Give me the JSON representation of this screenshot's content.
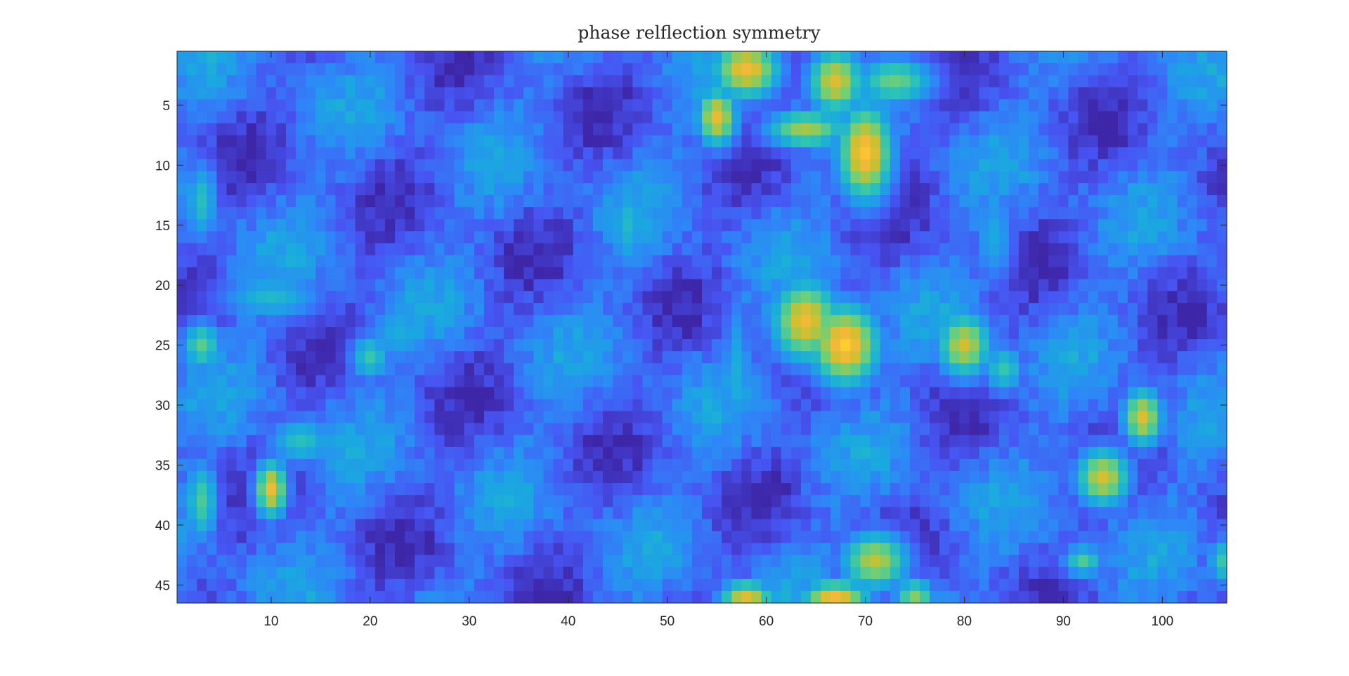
{
  "chart_data": {
    "type": "heatmap",
    "title": "phase relflection symmetry",
    "xlabel": "",
    "ylabel": "",
    "colormap": "parula",
    "colormap_stops": [
      "#3e26a8",
      "#4755f3",
      "#2e87f7",
      "#1aa9df",
      "#2cc4b6",
      "#6ecf78",
      "#c8c12f",
      "#fdb73b",
      "#f9fb15"
    ],
    "n_columns": 106,
    "n_rows": 46,
    "xlim": [
      0.5,
      106.5
    ],
    "ylim": [
      0.5,
      46.5
    ],
    "y_direction": "reverse",
    "value_range": [
      0,
      1
    ],
    "x_ticks": [
      10,
      20,
      30,
      40,
      50,
      60,
      70,
      80,
      90,
      100
    ],
    "x_tick_labels": [
      "10",
      "20",
      "30",
      "40",
      "50",
      "60",
      "70",
      "80",
      "90",
      "100"
    ],
    "y_ticks": [
      5,
      10,
      15,
      20,
      25,
      30,
      35,
      40,
      45
    ],
    "y_tick_labels": [
      "5",
      "10",
      "15",
      "20",
      "25",
      "30",
      "35",
      "40",
      "45"
    ],
    "background_level": 0.12,
    "hotspots": [
      {
        "col": 58,
        "row": 2,
        "value": 0.9,
        "spread_cols": 2.5,
        "spread_rows": 1.8
      },
      {
        "col": 55,
        "row": 6,
        "value": 0.88,
        "spread_cols": 1.5,
        "spread_rows": 1.8
      },
      {
        "col": 64,
        "row": 7,
        "value": 0.75,
        "spread_cols": 3.0,
        "spread_rows": 1.2
      },
      {
        "col": 67,
        "row": 3,
        "value": 0.85,
        "spread_cols": 2.0,
        "spread_rows": 2.0
      },
      {
        "col": 70,
        "row": 9,
        "value": 0.95,
        "spread_cols": 2.0,
        "spread_rows": 3.0
      },
      {
        "col": 73,
        "row": 3,
        "value": 0.65,
        "spread_cols": 3.0,
        "spread_rows": 1.5
      },
      {
        "col": 64,
        "row": 23,
        "value": 0.9,
        "spread_cols": 2.5,
        "spread_rows": 2.5
      },
      {
        "col": 68,
        "row": 25,
        "value": 0.98,
        "spread_cols": 2.5,
        "spread_rows": 2.5
      },
      {
        "col": 80,
        "row": 25,
        "value": 0.82,
        "spread_cols": 2.0,
        "spread_rows": 2.0
      },
      {
        "col": 84,
        "row": 27,
        "value": 0.55,
        "spread_cols": 1.5,
        "spread_rows": 1.5
      },
      {
        "col": 98,
        "row": 31,
        "value": 0.85,
        "spread_cols": 1.5,
        "spread_rows": 1.8
      },
      {
        "col": 94,
        "row": 36,
        "value": 0.85,
        "spread_cols": 2.0,
        "spread_rows": 1.8
      },
      {
        "col": 10,
        "row": 37,
        "value": 0.9,
        "spread_cols": 1.2,
        "spread_rows": 1.8
      },
      {
        "col": 13,
        "row": 33,
        "value": 0.5,
        "spread_cols": 2.5,
        "spread_rows": 1.5
      },
      {
        "col": 3,
        "row": 38,
        "value": 0.6,
        "spread_cols": 1.2,
        "spread_rows": 2.5
      },
      {
        "col": 3,
        "row": 25,
        "value": 0.62,
        "spread_cols": 1.5,
        "spread_rows": 1.5
      },
      {
        "col": 3,
        "row": 13,
        "value": 0.5,
        "spread_cols": 1.2,
        "spread_rows": 2.5
      },
      {
        "col": 20,
        "row": 26,
        "value": 0.55,
        "spread_cols": 1.5,
        "spread_rows": 1.5
      },
      {
        "col": 10,
        "row": 21,
        "value": 0.45,
        "spread_cols": 4.0,
        "spread_rows": 1.5
      },
      {
        "col": 46,
        "row": 15,
        "value": 0.45,
        "spread_cols": 1.5,
        "spread_rows": 3.0
      },
      {
        "col": 71,
        "row": 43,
        "value": 0.8,
        "spread_cols": 2.5,
        "spread_rows": 1.8
      },
      {
        "col": 58,
        "row": 46,
        "value": 0.85,
        "spread_cols": 2.0,
        "spread_rows": 1.0
      },
      {
        "col": 67,
        "row": 46,
        "value": 0.9,
        "spread_cols": 2.5,
        "spread_rows": 1.0
      },
      {
        "col": 75,
        "row": 46,
        "value": 0.7,
        "spread_cols": 1.5,
        "spread_rows": 1.2
      },
      {
        "col": 92,
        "row": 43,
        "value": 0.6,
        "spread_cols": 1.5,
        "spread_rows": 1.0
      },
      {
        "col": 106,
        "row": 43,
        "value": 0.55,
        "spread_cols": 1.0,
        "spread_rows": 1.5
      },
      {
        "col": 23,
        "row": 24,
        "value": 0.4,
        "spread_cols": 2.5,
        "spread_rows": 2.0
      },
      {
        "col": 83,
        "row": 16,
        "value": 0.4,
        "spread_cols": 1.5,
        "spread_rows": 3.0
      },
      {
        "col": 62,
        "row": 18,
        "value": 0.4,
        "spread_cols": 2.0,
        "spread_rows": 2.0
      },
      {
        "col": 57,
        "row": 27,
        "value": 0.4,
        "spread_cols": 1.0,
        "spread_rows": 5.0
      }
    ]
  }
}
